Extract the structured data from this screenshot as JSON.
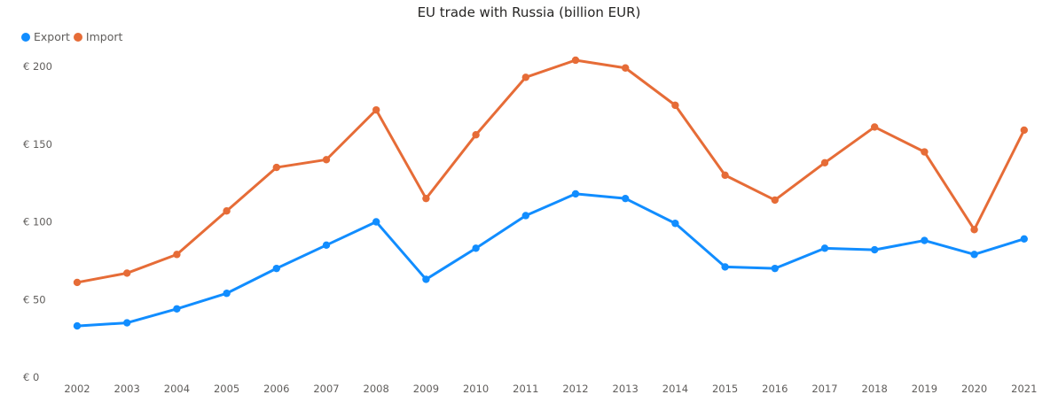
{
  "chart_data": {
    "type": "line",
    "title": "EU trade with Russia (billion EUR)",
    "xlabel": "",
    "ylabel": "",
    "categories": [
      "2002",
      "2003",
      "2004",
      "2005",
      "2006",
      "2007",
      "2008",
      "2009",
      "2010",
      "2011",
      "2012",
      "2013",
      "2014",
      "2015",
      "2016",
      "2017",
      "2018",
      "2019",
      "2020",
      "2021"
    ],
    "series": [
      {
        "name": "Export",
        "color": "#118dff",
        "values": [
          33,
          35,
          44,
          54,
          70,
          85,
          100,
          63,
          83,
          104,
          118,
          115,
          99,
          71,
          70,
          83,
          82,
          88,
          79,
          89
        ]
      },
      {
        "name": "Import",
        "color": "#e66c37",
        "values": [
          61,
          67,
          79,
          107,
          135,
          140,
          172,
          115,
          156,
          193,
          204,
          199,
          175,
          130,
          114,
          138,
          161,
          145,
          95,
          159
        ]
      }
    ],
    "ylim": [
      0,
      200
    ],
    "yticks": [
      "€ 0",
      "€ 50",
      "€ 100",
      "€ 150",
      "€ 200"
    ],
    "ytick_values": [
      0,
      50,
      100,
      150,
      200
    ],
    "grid": false,
    "legend_position": "top-left"
  }
}
